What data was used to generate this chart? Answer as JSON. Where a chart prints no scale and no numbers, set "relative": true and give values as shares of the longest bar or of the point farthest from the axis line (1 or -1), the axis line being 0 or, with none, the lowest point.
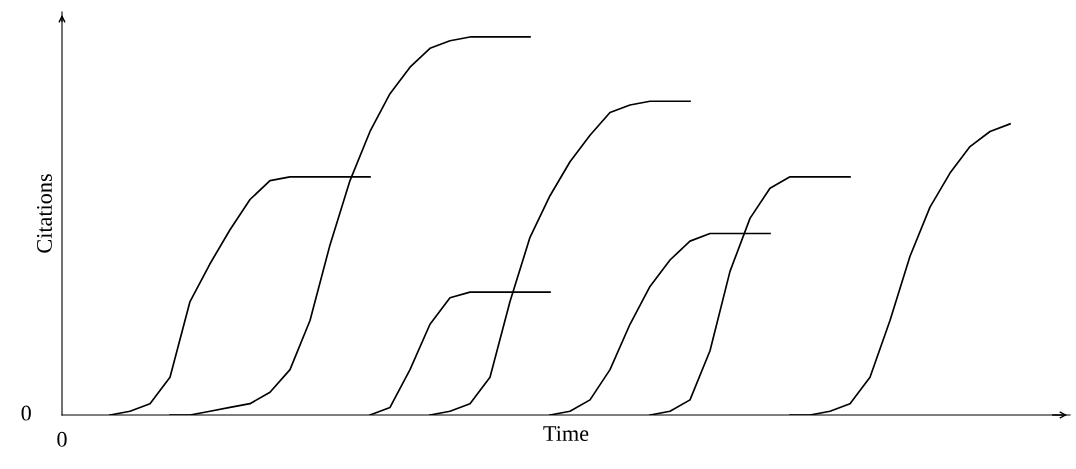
{
  "chart_data": {
    "type": "line",
    "relative": true,
    "xlabel": "Time",
    "ylabel": "Citations",
    "annotations": [
      "0",
      "0"
    ],
    "line_style": "solid",
    "categories": [
      null,
      null,
      null,
      null,
      null,
      null,
      null,
      null,
      null,
      null,
      null,
      null,
      null,
      null,
      null,
      null,
      null,
      null,
      null,
      null,
      null,
      null,
      null,
      null,
      null,
      null,
      null,
      null,
      null,
      null,
      null,
      null,
      null,
      null,
      null,
      null,
      null,
      null,
      null,
      null,
      null,
      null,
      null,
      null,
      null,
      null,
      null,
      null,
      null,
      null
    ],
    "series": [
      {
        "color": "#000000",
        "values": [
          null,
          null,
          0.0,
          0.01,
          0.03,
          0.1,
          0.3,
          0.4,
          0.49,
          0.57,
          0.62,
          0.63,
          0.63,
          0.63,
          0.63,
          0.63,
          null,
          null,
          null,
          null,
          null,
          null,
          null,
          null,
          null,
          null,
          null,
          null,
          null,
          null,
          null,
          null,
          null,
          null,
          null,
          null,
          null,
          null,
          null,
          null,
          null,
          null,
          null,
          null,
          null,
          null,
          null,
          null,
          null,
          null
        ]
      },
      {
        "color": "#000000",
        "values": [
          null,
          null,
          null,
          null,
          null,
          0.0,
          0.0,
          0.01,
          0.02,
          0.03,
          0.06,
          0.12,
          0.25,
          0.45,
          0.62,
          0.75,
          0.85,
          0.92,
          0.97,
          0.99,
          1.0,
          1.0,
          1.0,
          1.0,
          null,
          null,
          null,
          null,
          null,
          null,
          null,
          null,
          null,
          null,
          null,
          null,
          null,
          null,
          null,
          null,
          null,
          null,
          null,
          null,
          null,
          null,
          null,
          null,
          null,
          null
        ]
      },
      {
        "color": "#000000",
        "values": [
          null,
          null,
          null,
          null,
          null,
          null,
          null,
          null,
          null,
          null,
          null,
          null,
          null,
          null,
          null,
          0.0,
          0.02,
          0.12,
          0.24,
          0.31,
          0.325,
          0.325,
          0.325,
          0.325,
          0.325,
          null,
          null,
          null,
          null,
          null,
          null,
          null,
          null,
          null,
          null,
          null,
          null,
          null,
          null,
          null,
          null,
          null,
          null,
          null,
          null,
          null,
          null,
          null,
          null,
          null
        ]
      },
      {
        "color": "#000000",
        "values": [
          null,
          null,
          null,
          null,
          null,
          null,
          null,
          null,
          null,
          null,
          null,
          null,
          null,
          null,
          null,
          null,
          null,
          null,
          0.0,
          0.01,
          0.03,
          0.1,
          0.3,
          0.47,
          0.58,
          0.67,
          0.74,
          0.8,
          0.82,
          0.83,
          0.83,
          0.83,
          null,
          null,
          null,
          null,
          null,
          null,
          null,
          null,
          null,
          null,
          null,
          null,
          null,
          null,
          null,
          null,
          null,
          null
        ]
      },
      {
        "color": "#000000",
        "values": [
          null,
          null,
          null,
          null,
          null,
          null,
          null,
          null,
          null,
          null,
          null,
          null,
          null,
          null,
          null,
          null,
          null,
          null,
          null,
          null,
          null,
          null,
          null,
          null,
          0.0,
          0.01,
          0.04,
          0.12,
          0.24,
          0.34,
          0.41,
          0.46,
          0.48,
          0.48,
          0.48,
          0.48,
          null,
          null,
          null,
          null,
          null,
          null,
          null,
          null,
          null,
          null,
          null,
          null,
          null,
          null
        ]
      },
      {
        "color": "#000000",
        "values": [
          null,
          null,
          null,
          null,
          null,
          null,
          null,
          null,
          null,
          null,
          null,
          null,
          null,
          null,
          null,
          null,
          null,
          null,
          null,
          null,
          null,
          null,
          null,
          null,
          null,
          null,
          null,
          null,
          null,
          0.0,
          0.01,
          0.04,
          0.17,
          0.38,
          0.52,
          0.6,
          0.63,
          0.63,
          0.63,
          0.63,
          null,
          null,
          null,
          null,
          null,
          null,
          null,
          null,
          null,
          null
        ]
      },
      {
        "color": "#000000",
        "values": [
          null,
          null,
          null,
          null,
          null,
          null,
          null,
          null,
          null,
          null,
          null,
          null,
          null,
          null,
          null,
          null,
          null,
          null,
          null,
          null,
          null,
          null,
          null,
          null,
          null,
          null,
          null,
          null,
          null,
          null,
          null,
          null,
          null,
          null,
          null,
          null,
          0.0,
          0.0,
          0.01,
          0.03,
          0.1,
          0.25,
          0.42,
          0.55,
          0.64,
          0.71,
          0.75,
          0.77,
          null,
          null
        ]
      }
    ]
  }
}
